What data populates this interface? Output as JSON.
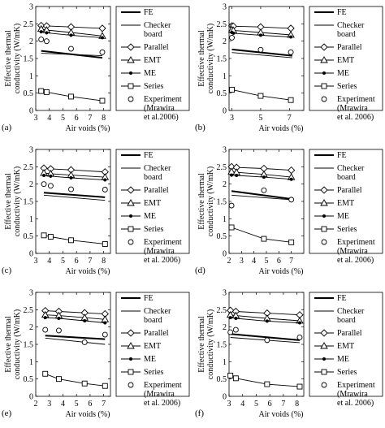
{
  "figure": {
    "ylabel_line1": "Effective thermal",
    "ylabel_line2": "conductivity (W/mK)",
    "xlabel": "Air voids (%)",
    "ylim": [
      0,
      3
    ],
    "yticks": [
      "0",
      "0.5",
      "1",
      "1.5",
      "2",
      "2.5",
      "3"
    ],
    "legend": [
      {
        "key": "fe",
        "lines": [
          "FE"
        ]
      },
      {
        "key": "checker",
        "lines": [
          "Checker",
          "board"
        ]
      },
      {
        "key": "parallel",
        "lines": [
          "Parallel"
        ]
      },
      {
        "key": "emt",
        "lines": [
          "EMT"
        ]
      },
      {
        "key": "me",
        "lines": [
          "ME"
        ]
      },
      {
        "key": "series",
        "lines": [
          "Series"
        ]
      },
      {
        "key": "experiment",
        "lines": [
          "Experiment",
          "(Mrawira",
          "et al. 2006)"
        ]
      }
    ]
  },
  "chart_data": [
    {
      "panel": "(a)",
      "type": "line",
      "xlim": [
        3,
        8.5
      ],
      "xticks": [
        "3",
        "4",
        "5",
        "6",
        "7",
        "8"
      ],
      "legend_lines": {
        "experiment": [
          "Experiment",
          "(Mrawira",
          "et al.2006)"
        ]
      },
      "series": [
        {
          "name": "FE",
          "key": "fe",
          "x": [
            3.4,
            7.9
          ],
          "y": [
            1.72,
            1.52
          ]
        },
        {
          "name": "Checker board",
          "key": "checker",
          "x": [
            3.4,
            7.9
          ],
          "y": [
            1.65,
            1.58
          ]
        },
        {
          "name": "Parallel",
          "key": "parallel",
          "x": [
            3.4,
            3.8,
            5.6,
            7.9
          ],
          "y": [
            2.45,
            2.44,
            2.41,
            2.37
          ]
        },
        {
          "name": "EMT",
          "key": "emt",
          "x": [
            3.4,
            3.8,
            5.6,
            7.9
          ],
          "y": [
            2.35,
            2.32,
            2.25,
            2.15
          ]
        },
        {
          "name": "ME",
          "key": "me",
          "x": [
            3.4,
            3.8,
            5.6,
            7.9
          ],
          "y": [
            2.27,
            2.24,
            2.17,
            2.1
          ]
        },
        {
          "name": "Series",
          "key": "series",
          "x": [
            3.4,
            3.8,
            5.6,
            7.9
          ],
          "y": [
            0.56,
            0.53,
            0.4,
            0.28
          ]
        },
        {
          "name": "Experiment (Mrawira et al.2006)",
          "key": "experiment",
          "x": [
            3.4,
            3.8,
            5.6,
            7.9
          ],
          "y": [
            2.05,
            2.0,
            1.78,
            1.68
          ]
        }
      ]
    },
    {
      "panel": "(b)",
      "type": "line",
      "xlim": [
        2.8,
        8
      ],
      "xticks": [
        "3",
        "5",
        "7"
      ],
      "series": [
        {
          "name": "FE",
          "key": "fe",
          "x": [
            3.0,
            7.2
          ],
          "y": [
            1.76,
            1.58
          ]
        },
        {
          "name": "Checker board",
          "key": "checker",
          "x": [
            3.0,
            7.2
          ],
          "y": [
            1.67,
            1.52
          ]
        },
        {
          "name": "Parallel",
          "key": "parallel",
          "x": [
            3.0,
            3.1,
            5.0,
            7.1
          ],
          "y": [
            2.44,
            2.43,
            2.41,
            2.37
          ]
        },
        {
          "name": "EMT",
          "key": "emt",
          "x": [
            3.0,
            3.1,
            5.0,
            7.1
          ],
          "y": [
            2.33,
            2.31,
            2.25,
            2.18
          ]
        },
        {
          "name": "ME",
          "key": "me",
          "x": [
            3.0,
            3.1,
            5.0,
            7.1
          ],
          "y": [
            2.25,
            2.23,
            2.17,
            2.12
          ]
        },
        {
          "name": "Series",
          "key": "series",
          "x": [
            3.0,
            5.0,
            7.1
          ],
          "y": [
            0.6,
            0.42,
            0.3
          ]
        },
        {
          "name": "Experiment (Mrawira et al. 2006)",
          "key": "experiment",
          "x": [
            3.0,
            5.0,
            7.1
          ],
          "y": [
            2.1,
            1.75,
            1.68
          ]
        }
      ]
    },
    {
      "panel": "(c)",
      "type": "line",
      "xlim": [
        3,
        8.5
      ],
      "xticks": [
        "3",
        "4",
        "5",
        "6",
        "7",
        "8"
      ],
      "series": [
        {
          "name": "FE",
          "key": "fe",
          "x": [
            3.6,
            8.1
          ],
          "y": [
            1.75,
            1.62
          ]
        },
        {
          "name": "Checker board",
          "key": "checker",
          "x": [
            3.6,
            8.1
          ],
          "y": [
            1.68,
            1.53
          ]
        },
        {
          "name": "Parallel",
          "key": "parallel",
          "x": [
            3.6,
            4.1,
            5.6,
            8.1
          ],
          "y": [
            2.46,
            2.44,
            2.41,
            2.35
          ]
        },
        {
          "name": "EMT",
          "key": "emt",
          "x": [
            3.6,
            4.1,
            5.6,
            8.1
          ],
          "y": [
            2.32,
            2.3,
            2.26,
            2.2
          ]
        },
        {
          "name": "ME",
          "key": "me",
          "x": [
            3.6,
            4.1,
            5.6,
            8.1
          ],
          "y": [
            2.25,
            2.23,
            2.18,
            2.12
          ]
        },
        {
          "name": "Series",
          "key": "series",
          "x": [
            3.6,
            4.1,
            5.6,
            8.1
          ],
          "y": [
            0.52,
            0.48,
            0.38,
            0.27
          ]
        },
        {
          "name": "Experiment (Mrawira et al. 2006)",
          "key": "experiment",
          "x": [
            3.6,
            4.1,
            5.6,
            8.1
          ],
          "y": [
            2.0,
            1.95,
            1.85,
            1.84
          ]
        }
      ]
    },
    {
      "panel": "(d)",
      "type": "line",
      "xlim": [
        2,
        8
      ],
      "xticks": [
        "2",
        "3",
        "4",
        "5",
        "6",
        "7"
      ],
      "series": [
        {
          "name": "FE",
          "key": "fe",
          "x": [
            2.2,
            7.0
          ],
          "y": [
            1.8,
            1.57
          ]
        },
        {
          "name": "Checker board",
          "key": "checker",
          "x": [
            2.2,
            7.0
          ],
          "y": [
            1.68,
            1.55
          ]
        },
        {
          "name": "Parallel",
          "key": "parallel",
          "x": [
            2.2,
            2.6,
            4.8,
            7.0
          ],
          "y": [
            2.5,
            2.48,
            2.45,
            2.4
          ]
        },
        {
          "name": "EMT",
          "key": "emt",
          "x": [
            2.2,
            2.6,
            4.8,
            7.0
          ],
          "y": [
            2.36,
            2.34,
            2.28,
            2.2
          ]
        },
        {
          "name": "ME",
          "key": "me",
          "x": [
            2.2,
            2.6,
            4.8,
            7.0
          ],
          "y": [
            2.26,
            2.25,
            2.2,
            2.14
          ]
        },
        {
          "name": "Series",
          "key": "series",
          "x": [
            2.2,
            4.8,
            7.0
          ],
          "y": [
            0.75,
            0.42,
            0.32
          ]
        },
        {
          "name": "Experiment (Mrawira et al. 2006)",
          "key": "experiment",
          "x": [
            2.2,
            4.8,
            7.0
          ],
          "y": [
            1.38,
            1.82,
            1.55
          ]
        }
      ]
    },
    {
      "panel": "(e)",
      "type": "line",
      "xlim": [
        2,
        7.5
      ],
      "xticks": [
        "2",
        "3",
        "4",
        "5",
        "6",
        "7"
      ],
      "series": [
        {
          "name": "FE",
          "key": "fe",
          "x": [
            2.7,
            7.1
          ],
          "y": [
            1.75,
            1.65
          ]
        },
        {
          "name": "Checker board",
          "key": "checker",
          "x": [
            2.7,
            7.1
          ],
          "y": [
            1.68,
            1.5
          ]
        },
        {
          "name": "Parallel",
          "key": "parallel",
          "x": [
            2.7,
            3.7,
            5.6,
            7.1
          ],
          "y": [
            2.47,
            2.45,
            2.41,
            2.38
          ]
        },
        {
          "name": "EMT",
          "key": "emt",
          "x": [
            2.7,
            3.7,
            5.6,
            7.1
          ],
          "y": [
            2.35,
            2.33,
            2.27,
            2.22
          ]
        },
        {
          "name": "ME",
          "key": "me",
          "x": [
            2.7,
            3.7,
            5.6,
            7.1
          ],
          "y": [
            2.27,
            2.25,
            2.18,
            2.12
          ]
        },
        {
          "name": "Series",
          "key": "series",
          "x": [
            2.7,
            3.7,
            5.6,
            7.1
          ],
          "y": [
            0.65,
            0.5,
            0.37,
            0.3
          ]
        },
        {
          "name": "Experiment (Mrawira et al. 2006)",
          "key": "experiment",
          "x": [
            2.7,
            3.7,
            5.6,
            7.1
          ],
          "y": [
            1.92,
            1.9,
            1.56,
            1.78
          ]
        }
      ]
    },
    {
      "panel": "(f)",
      "type": "line",
      "xlim": [
        3,
        8.5
      ],
      "xticks": [
        "3",
        "4",
        "5",
        "6",
        "7",
        "8"
      ],
      "series": [
        {
          "name": "FE",
          "key": "fe",
          "x": [
            3.1,
            8.2
          ],
          "y": [
            1.8,
            1.62
          ]
        },
        {
          "name": "Checker board",
          "key": "checker",
          "x": [
            3.1,
            8.2
          ],
          "y": [
            1.7,
            1.55
          ]
        },
        {
          "name": "Parallel",
          "key": "parallel",
          "x": [
            3.1,
            3.5,
            5.8,
            8.2
          ],
          "y": [
            2.48,
            2.45,
            2.4,
            2.35
          ]
        },
        {
          "name": "EMT",
          "key": "emt",
          "x": [
            3.1,
            3.5,
            5.8,
            8.2
          ],
          "y": [
            2.35,
            2.33,
            2.25,
            2.18
          ]
        },
        {
          "name": "ME",
          "key": "me",
          "x": [
            3.1,
            3.5,
            5.8,
            8.2
          ],
          "y": [
            2.27,
            2.25,
            2.17,
            2.12
          ]
        },
        {
          "name": "Series",
          "key": "series",
          "x": [
            3.1,
            3.5,
            5.8,
            8.2
          ],
          "y": [
            0.6,
            0.52,
            0.35,
            0.28
          ]
        },
        {
          "name": "Experiment (Mrawira et al. 2006)",
          "key": "experiment",
          "x": [
            3.1,
            3.5,
            5.8,
            8.2
          ],
          "y": [
            1.85,
            1.92,
            1.62,
            1.7
          ]
        }
      ]
    }
  ]
}
